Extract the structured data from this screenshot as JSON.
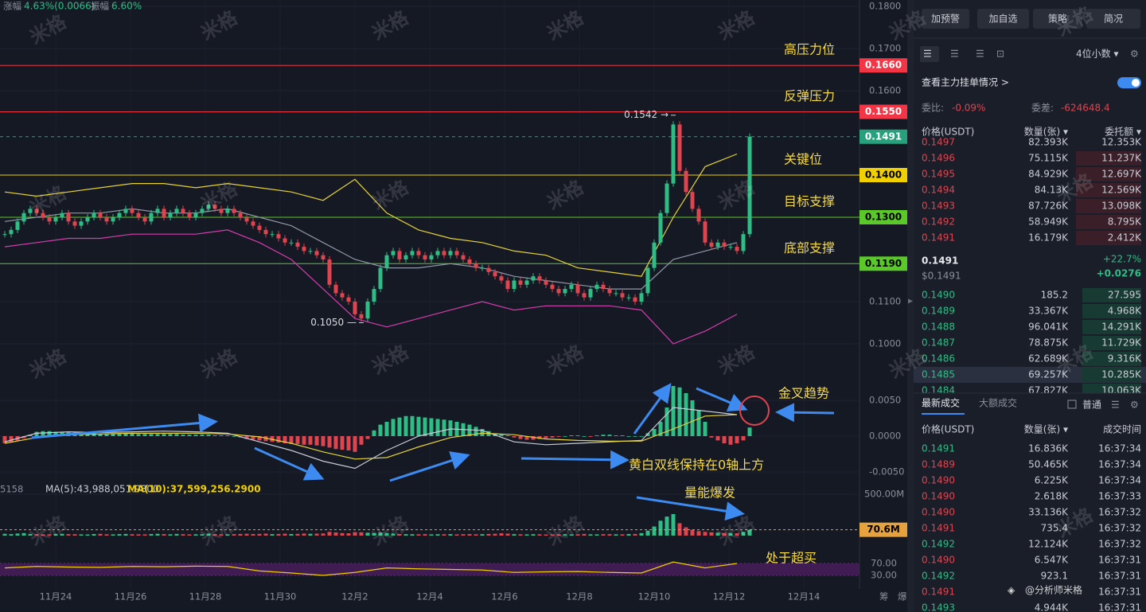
{
  "header": {
    "change_label": "涨幅",
    "change": "4.63%(0.0066)",
    "amplitude_label": "振幅",
    "amplitude": "6.60%"
  },
  "watermark": "米格",
  "footer_watermark": "@分析师米格",
  "price_axis": {
    "ylim": [
      0.1,
      0.18
    ],
    "yticks": [
      {
        "value": 0.18,
        "label": "0.1800"
      },
      {
        "value": 0.17,
        "label": "0.1700"
      },
      {
        "value": 0.16,
        "label": "0.1600"
      },
      {
        "value": 0.11,
        "label": "0.1100"
      },
      {
        "value": 0.1,
        "label": "0.1000"
      }
    ]
  },
  "levels": [
    {
      "price": 0.166,
      "label": "0.1660",
      "note": "高压力位",
      "color": "#f23645",
      "text_color": "#ffffff",
      "dashed": false
    },
    {
      "price": 0.155,
      "label": "0.1550",
      "note": "反弹压力",
      "color": "#f23645",
      "text_color": "#ffffff",
      "dashed": false
    },
    {
      "price": 0.1491,
      "label": "0.1491",
      "color": "#26a17b",
      "text_color": "#ffffff",
      "dashed": true
    },
    {
      "price": 0.14,
      "label": "0.1400",
      "note": "关键位",
      "color": "#f0d000",
      "text_color": "#000000",
      "dashed": false
    },
    {
      "price": 0.13,
      "label": "0.1300",
      "note": "目标支撑",
      "color": "#5bc82a",
      "text_color": "#000000",
      "dashed": false
    },
    {
      "price": 0.119,
      "label": "0.1190",
      "note": "底部支撑",
      "color": "#5bc82a",
      "text_color": "#000000",
      "dashed": false
    }
  ],
  "kline": {
    "up_color": "#2ebd85",
    "down_color": "#e0444f",
    "closes": [
      0.126,
      0.127,
      0.129,
      0.131,
      0.132,
      0.131,
      0.13,
      0.129,
      0.13,
      0.131,
      0.129,
      0.128,
      0.129,
      0.13,
      0.131,
      0.13,
      0.129,
      0.13,
      0.131,
      0.132,
      0.131,
      0.13,
      0.129,
      0.131,
      0.132,
      0.13,
      0.131,
      0.132,
      0.131,
      0.13,
      0.131,
      0.132,
      0.133,
      0.132,
      0.131,
      0.132,
      0.131,
      0.13,
      0.129,
      0.128,
      0.127,
      0.126,
      0.126,
      0.125,
      0.124,
      0.124,
      0.123,
      0.122,
      0.122,
      0.121,
      0.12,
      0.114,
      0.112,
      0.111,
      0.11,
      0.107,
      0.106,
      0.11,
      0.113,
      0.118,
      0.121,
      0.122,
      0.12,
      0.121,
      0.122,
      0.121,
      0.12,
      0.121,
      0.122,
      0.121,
      0.122,
      0.121,
      0.12,
      0.119,
      0.118,
      0.118,
      0.117,
      0.116,
      0.115,
      0.113,
      0.115,
      0.114,
      0.115,
      0.116,
      0.115,
      0.114,
      0.113,
      0.112,
      0.113,
      0.114,
      0.112,
      0.111,
      0.113,
      0.114,
      0.113,
      0.112,
      0.112,
      0.111,
      0.111,
      0.11,
      0.112,
      0.118,
      0.124,
      0.131,
      0.138,
      0.152,
      0.141,
      0.136,
      0.132,
      0.129,
      0.124,
      0.123,
      0.124,
      0.123,
      0.123,
      0.122,
      0.126,
      0.1491
    ],
    "high_marker": {
      "value": 0.1542,
      "label": "0.1542 →"
    },
    "low_marker": {
      "value": 0.105,
      "label": "0.1050 —"
    }
  },
  "bands": {
    "step": 5,
    "upper_color": "#e6d23a",
    "middle_color": "#9097a6",
    "lower_color": "#d63cae",
    "upper": [
      0.136,
      0.135,
      0.136,
      0.137,
      0.138,
      0.138,
      0.137,
      0.138,
      0.137,
      0.136,
      0.134,
      0.139,
      0.131,
      0.127,
      0.125,
      0.124,
      0.122,
      0.121,
      0.118,
      0.117,
      0.116,
      0.13,
      0.142,
      0.145
    ],
    "middle": [
      0.129,
      0.13,
      0.131,
      0.131,
      0.132,
      0.131,
      0.131,
      0.132,
      0.13,
      0.128,
      0.124,
      0.12,
      0.118,
      0.118,
      0.119,
      0.118,
      0.116,
      0.115,
      0.114,
      0.113,
      0.113,
      0.12,
      0.122,
      0.124
    ],
    "lower": [
      0.123,
      0.124,
      0.125,
      0.125,
      0.126,
      0.126,
      0.126,
      0.127,
      0.124,
      0.12,
      0.113,
      0.106,
      0.104,
      0.106,
      0.108,
      0.11,
      0.108,
      0.109,
      0.109,
      0.109,
      0.108,
      0.1,
      0.103,
      0.107
    ]
  },
  "macd": {
    "yticks": [
      {
        "value": 0.005,
        "label": "0.0050"
      },
      {
        "value": 0,
        "label": "0.0000"
      },
      {
        "value": -0.005,
        "label": "-0.0050"
      }
    ],
    "hist": [
      -0.001,
      -0.0009,
      -0.0006,
      -0.0003,
      0.0002,
      0.0006,
      0.0007,
      0.0007,
      0.0006,
      0.0006,
      0.0005,
      0.0005,
      0.0004,
      0.0004,
      0.0004,
      0.0003,
      0.0003,
      0.0003,
      0.0003,
      0.0004,
      0.0004,
      0.0003,
      0.0003,
      0.0003,
      0.0003,
      0.0003,
      0.0003,
      0.0003,
      0.0002,
      0.0002,
      0.0002,
      0.0002,
      0.0002,
      0.0001,
      0.0001,
      0.0001,
      0,
      -0.0002,
      -0.0004,
      -0.0005,
      -0.0006,
      -0.0007,
      -0.0008,
      -0.0009,
      -0.001,
      -0.0011,
      -0.0011,
      -0.0012,
      -0.0012,
      -0.0013,
      -0.0014,
      -0.0016,
      -0.0018,
      -0.0019,
      -0.002,
      -0.0022,
      -0.0012,
      -0.0004,
      0.0008,
      0.0016,
      0.002,
      0.0024,
      0.0026,
      0.0028,
      0.0028,
      0.0027,
      0.0026,
      0.0025,
      0.0024,
      0.0023,
      0.0022,
      0.002,
      0.0018,
      0.0016,
      0.0013,
      0.001,
      0.0007,
      0.0004,
      0.0002,
      0.0001,
      -0.0002,
      -0.0004,
      -0.0005,
      -0.0005,
      -0.0004,
      -0.0003,
      -0.0002,
      -0.0001,
      0,
      0.0001,
      0.0001,
      0,
      -0.0001,
      0.0001,
      0.0002,
      0.0002,
      0.0001,
      0.0001,
      0,
      0,
      0,
      0.0004,
      0.001,
      0.002,
      0.004,
      0.007,
      0.0068,
      0.006,
      0.005,
      0.0036,
      0.002,
      -0.0002,
      -0.0006,
      -0.001,
      -0.0012,
      -0.001,
      -0.0006,
      0.0012
    ],
    "dif_color": "#c8ccd6",
    "dea_color": "#e6d23a",
    "dif": [
      -0.0008,
      0.0004,
      0.0006,
      0.0005,
      0.0006,
      0.0007,
      0.0006,
      0.0004,
      -0.0008,
      -0.002,
      -0.0035,
      -0.0045,
      -0.002,
      0,
      0.001,
      0.0008,
      -0.0008,
      -0.0012,
      -0.001,
      -0.0008,
      -0.0006,
      0.004,
      0.0035,
      0.003
    ],
    "dea": [
      -0.001,
      -0.0002,
      0.0002,
      0.0003,
      0.0004,
      0.0004,
      0.0004,
      0.0003,
      -0.0001,
      -0.001,
      -0.0022,
      -0.0032,
      -0.003,
      -0.0015,
      -0.0002,
      0.0004,
      0.0002,
      -0.0004,
      -0.0006,
      -0.0007,
      -0.0007,
      0.001,
      0.0028,
      0.003
    ]
  },
  "volume": {
    "id_fragment": "5158",
    "ma5": "MA(5):43,988,051.9800",
    "ma10": "MA(10):37,599,256.2900",
    "yticks": [
      {
        "value": 500,
        "label": "500.00M"
      }
    ],
    "current": {
      "value": 70.6,
      "label": "70.6M"
    },
    "values": [
      22,
      18,
      25,
      30,
      20,
      18,
      15,
      16,
      20,
      22,
      18,
      17,
      15,
      14,
      19,
      21,
      16,
      15,
      18,
      20,
      17,
      16,
      15,
      19,
      22,
      18,
      16,
      20,
      17,
      15,
      16,
      18,
      24,
      19,
      17,
      16,
      18,
      20,
      22,
      19,
      21,
      24,
      18,
      20,
      23,
      19,
      21,
      25,
      22,
      24,
      26,
      45,
      38,
      30,
      28,
      42,
      40,
      35,
      30,
      38,
      32,
      25,
      20,
      18,
      17,
      16,
      18,
      15,
      17,
      16,
      18,
      15,
      17,
      19,
      16,
      18,
      20,
      22,
      28,
      24,
      18,
      16,
      15,
      17,
      16,
      14,
      15,
      16,
      18,
      15,
      17,
      20,
      16,
      15,
      17,
      18,
      16,
      15,
      19,
      20,
      30,
      60,
      110,
      180,
      230,
      260,
      150,
      100,
      70,
      55,
      45,
      40,
      35,
      32,
      30,
      28,
      45,
      70
    ]
  },
  "rsi": {
    "step": 5,
    "yticks": [
      {
        "value": 70,
        "label": "70.00"
      },
      {
        "value": 30,
        "label": "30.00"
      }
    ],
    "values": [
      55,
      60,
      58,
      57,
      60,
      59,
      61,
      60,
      45,
      38,
      30,
      40,
      55,
      52,
      50,
      48,
      40,
      42,
      43,
      40,
      38,
      75,
      55,
      70
    ]
  },
  "x_axis": {
    "labels": [
      "11月24",
      "11月26",
      "11月28",
      "11月30",
      "12月2",
      "12月4",
      "12月6",
      "12月8",
      "12月10",
      "12月12",
      "12月14"
    ],
    "corner": [
      "筹",
      "爆"
    ]
  },
  "annotations": {
    "golden_cross": "金叉趋势",
    "above_zero": "黄白双线保持在0轴上方",
    "volume_burst": "量能爆发",
    "overbought": "处于超买"
  },
  "side_panel": {
    "buttons": [
      "加预警",
      "加自选",
      "策略",
      "简况"
    ],
    "decimals": "4位小数 ▾",
    "main_orders": "查看主力挂单情况 >",
    "ratio_label": "委比:",
    "ratio": "-0.09%",
    "diff_label": "委差:",
    "diff": "-624648.4",
    "book_header": [
      "价格(USDT)",
      "数量(张) ▾",
      "委托额 ▾"
    ],
    "asks": [
      [
        "0.1497",
        "82.393K",
        "12.353K"
      ],
      [
        "0.1496",
        "75.115K",
        "11.237K"
      ],
      [
        "0.1495",
        "84.929K",
        "12.697K"
      ],
      [
        "0.1494",
        "84.13K",
        "12.569K"
      ],
      [
        "0.1493",
        "87.726K",
        "13.098K"
      ],
      [
        "0.1492",
        "58.949K",
        "8.795K"
      ],
      [
        "0.1491",
        "16.179K",
        "2.412K"
      ]
    ],
    "last_price": "0.1491",
    "last_usd": "$0.1491",
    "change_pct": "+22.7%",
    "change_abs": "+0.0276",
    "bids": [
      [
        "0.1490",
        "185.2",
        "27.595"
      ],
      [
        "0.1489",
        "33.367K",
        "4.968K"
      ],
      [
        "0.1488",
        "96.041K",
        "14.291K"
      ],
      [
        "0.1487",
        "78.875K",
        "11.729K"
      ],
      [
        "0.1486",
        "62.689K",
        "9.316K"
      ],
      [
        "0.1485",
        "69.257K",
        "10.285K"
      ],
      [
        "0.1484",
        "67.827K",
        "10.063K"
      ]
    ],
    "tabs": [
      "最新成交",
      "大额成交"
    ],
    "normal": "普通",
    "trades_header": [
      "价格(USDT)",
      "数量(张) ▾",
      "成交时间"
    ],
    "trades": [
      {
        "side": "buy",
        "cells": [
          "0.1491",
          "16.836K",
          "16:37:34"
        ]
      },
      {
        "side": "sell",
        "cells": [
          "0.1489",
          "50.465K",
          "16:37:34"
        ]
      },
      {
        "side": "sell",
        "cells": [
          "0.1490",
          "6.225K",
          "16:37:34"
        ]
      },
      {
        "side": "sell",
        "cells": [
          "0.1490",
          "2.618K",
          "16:37:33"
        ]
      },
      {
        "side": "sell",
        "cells": [
          "0.1490",
          "33.136K",
          "16:37:32"
        ]
      },
      {
        "side": "sell",
        "cells": [
          "0.1491",
          "735.4",
          "16:37:32"
        ]
      },
      {
        "side": "buy",
        "cells": [
          "0.1492",
          "12.124K",
          "16:37:32"
        ]
      },
      {
        "side": "sell",
        "cells": [
          "0.1490",
          "6.547K",
          "16:37:31"
        ]
      },
      {
        "side": "buy",
        "cells": [
          "0.1492",
          "923.1",
          "16:37:31"
        ]
      },
      {
        "side": "sell",
        "cells": [
          "0.1491",
          "",
          "16:37:31"
        ]
      },
      {
        "side": "buy",
        "cells": [
          "0.1493",
          "4.944K",
          "16:37:31"
        ]
      }
    ]
  }
}
